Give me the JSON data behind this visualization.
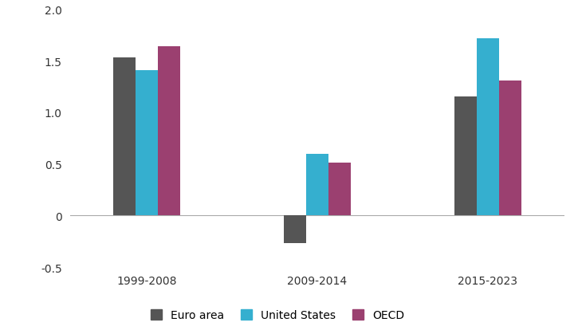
{
  "categories": [
    "1999-2008",
    "2009-2014",
    "2015-2023"
  ],
  "series": {
    "Euro area": [
      1.53,
      -0.27,
      1.15
    ],
    "United States": [
      1.41,
      0.6,
      1.72
    ],
    "OECD": [
      1.64,
      0.51,
      1.31
    ]
  },
  "colors": {
    "Euro area": "#555555",
    "United States": "#35AFCF",
    "OECD": "#9B4070"
  },
  "ylim": [
    -0.5,
    2.0
  ],
  "yticks": [
    0,
    0.5,
    1.0,
    1.5,
    2.0
  ],
  "ytick_extra": -0.5,
  "bar_width": 0.13,
  "x_positions": [
    0,
    1,
    2
  ],
  "background_color": "#ffffff"
}
